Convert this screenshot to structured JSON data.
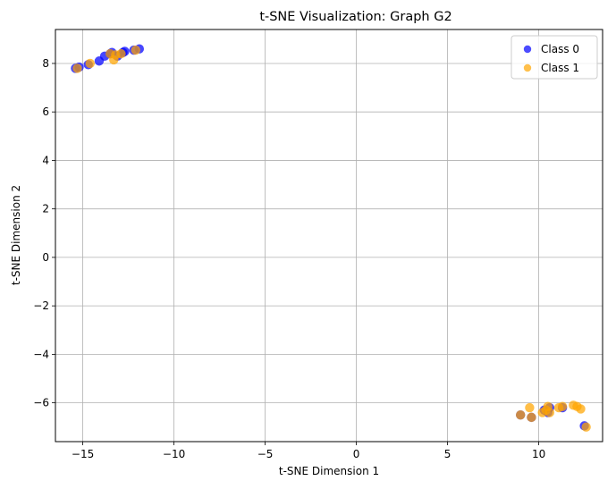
{
  "chart_data": {
    "type": "scatter",
    "title": "t-SNE Visualization: Graph G2",
    "xlabel": "t-SNE Dimension 1",
    "ylabel": "t-SNE Dimension 2",
    "xlim": [
      -16.5,
      13.5
    ],
    "ylim": [
      -7.6,
      9.4
    ],
    "xticks": [
      -15,
      -10,
      -5,
      0,
      5,
      10
    ],
    "xtick_labels": [
      "−15",
      "−10",
      "−5",
      "0",
      "5",
      "10"
    ],
    "yticks": [
      -6,
      -4,
      -2,
      0,
      2,
      4,
      6,
      8
    ],
    "ytick_labels": [
      "−6",
      "−4",
      "−2",
      "0",
      "2",
      "4",
      "6",
      "8"
    ],
    "grid": true,
    "legend_position": "top-right",
    "series": [
      {
        "name": "Class 0",
        "color": "#0000ff",
        "points": [
          [
            -15.4,
            7.8
          ],
          [
            -15.2,
            7.85
          ],
          [
            -14.7,
            7.95
          ],
          [
            -14.1,
            8.1
          ],
          [
            -13.8,
            8.3
          ],
          [
            -13.5,
            8.4
          ],
          [
            -13.4,
            8.45
          ],
          [
            -13.1,
            8.3
          ],
          [
            -12.8,
            8.45
          ],
          [
            -12.7,
            8.5
          ],
          [
            -12.2,
            8.55
          ],
          [
            -11.9,
            8.6
          ],
          [
            9.0,
            -6.5
          ],
          [
            9.6,
            -6.6
          ],
          [
            10.3,
            -6.3
          ],
          [
            10.5,
            -6.4
          ],
          [
            10.6,
            -6.2
          ],
          [
            11.3,
            -6.2
          ],
          [
            12.5,
            -6.95
          ]
        ]
      },
      {
        "name": "Class 1",
        "color": "#ffa500",
        "points": [
          [
            -15.3,
            7.8
          ],
          [
            -14.6,
            8.0
          ],
          [
            -13.5,
            8.4
          ],
          [
            -13.3,
            8.15
          ],
          [
            -13.2,
            8.35
          ],
          [
            -12.9,
            8.4
          ],
          [
            -12.1,
            8.55
          ],
          [
            9.0,
            -6.5
          ],
          [
            9.5,
            -6.2
          ],
          [
            9.6,
            -6.6
          ],
          [
            10.2,
            -6.4
          ],
          [
            10.4,
            -6.3
          ],
          [
            10.5,
            -6.15
          ],
          [
            10.6,
            -6.4
          ],
          [
            11.1,
            -6.2
          ],
          [
            11.3,
            -6.15
          ],
          [
            11.9,
            -6.1
          ],
          [
            12.1,
            -6.15
          ],
          [
            12.3,
            -6.25
          ],
          [
            12.6,
            -7.0
          ]
        ]
      }
    ]
  }
}
